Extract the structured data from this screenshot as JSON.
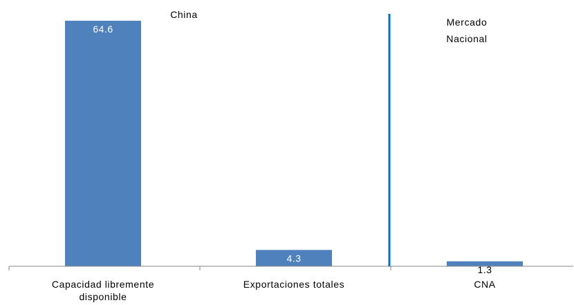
{
  "chart_data": {
    "type": "bar",
    "categories": [
      "Capacidad libremente disponible",
      "Exportaciones totales",
      "CNA"
    ],
    "category_label_lines": [
      [
        "Capacidad libremente",
        "disponible"
      ],
      [
        "Exportaciones totales"
      ],
      [
        "CNA"
      ]
    ],
    "values": [
      64.6,
      4.3,
      1.3
    ],
    "value_labels": [
      "64.6",
      "4.3",
      "1.3"
    ],
    "bar_color": "#4f81bd",
    "divider_color": "#0070c0",
    "group_labels": {
      "left": [
        "China"
      ],
      "right": [
        "Mercado",
        "Nacional"
      ]
    },
    "title": "",
    "xlabel": "",
    "ylabel": "",
    "ylim": [
      0,
      64.6
    ],
    "grid": false,
    "legend": "none"
  }
}
